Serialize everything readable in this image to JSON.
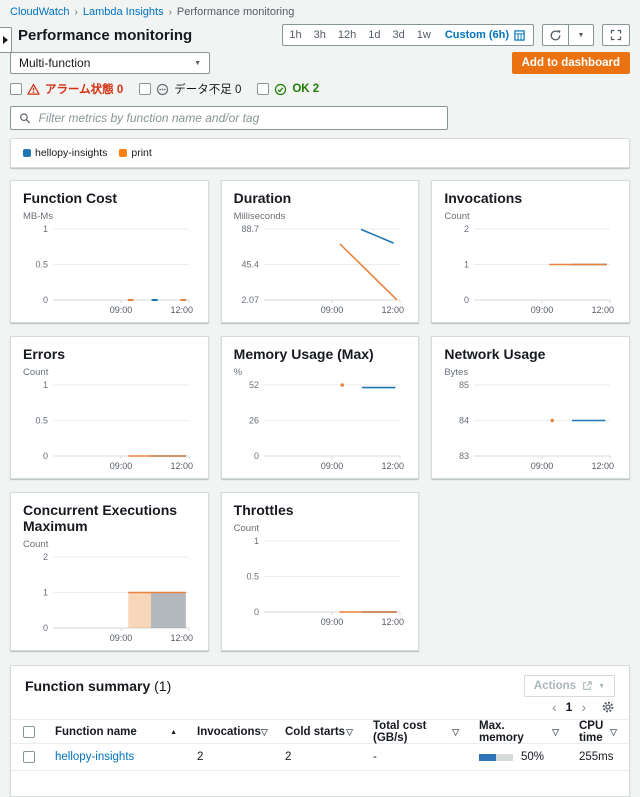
{
  "colors": {
    "accent_orange": "#ec7211",
    "link_blue": "#0073bb",
    "alarm_red": "#d13212",
    "ok_green": "#1d8102",
    "series_blue": "#1f77b4",
    "series_orange": "#e8823d"
  },
  "breadcrumb": {
    "items": [
      "CloudWatch",
      "Lambda Insights",
      "Performance monitoring"
    ]
  },
  "header": {
    "title": "Performance monitoring",
    "time_ranges": [
      "1h",
      "3h",
      "12h",
      "1d",
      "3d",
      "1w"
    ],
    "custom_range": "Custom (6h)",
    "add_to_dashboard_label": "Add to dashboard"
  },
  "toolbar": {
    "function_select_value": "Multi-function"
  },
  "alarm_filters": [
    {
      "label": "アラーム状態 0",
      "icon": "alarm-triangle"
    },
    {
      "label": "データ不足 0",
      "icon": "insufficient-data"
    },
    {
      "label": "OK 2",
      "icon": "ok-check"
    }
  ],
  "filter": {
    "placeholder": "Filter metrics by function name and/or tag"
  },
  "legend": {
    "items": [
      {
        "label": "hellopy-insights",
        "color": "#1f77b4"
      },
      {
        "label": "print",
        "color": "#ff7f0e"
      }
    ]
  },
  "chart_data": {
    "type": "line",
    "x_window": "06:00-12:00 (6h)",
    "charts": [
      {
        "title": "Function Cost",
        "unit": "MB-Ms",
        "xdomain": [
          6,
          12
        ],
        "xticks": [
          {
            "v": 9,
            "label": "09:00"
          },
          {
            "v": 12,
            "label": "12:00"
          }
        ],
        "yticks": [
          {
            "v": 1,
            "label": "1"
          },
          {
            "v": 0.5,
            "label": "0.5"
          },
          {
            "v": 0,
            "label": "0"
          }
        ],
        "series": [
          {
            "name": "print",
            "type": "line",
            "color": "#e8823d",
            "width": 2,
            "lines": [
              [
                [
                  9.3,
                  0
                ],
                [
                  9.55,
                  0
                ]
              ],
              [
                [
                  11.62,
                  0
                ],
                [
                  11.88,
                  0
                ]
              ]
            ]
          },
          {
            "name": "hellopy-insights",
            "type": "line",
            "color": "#1f77b4",
            "width": 2,
            "lines": [
              [
                [
                  10.35,
                  0
                ],
                [
                  10.62,
                  0
                ]
              ]
            ]
          }
        ]
      },
      {
        "title": "Duration",
        "unit": "Milliseconds",
        "xdomain": [
          6,
          12
        ],
        "xticks": [
          {
            "v": 9,
            "label": "09:00"
          },
          {
            "v": 12,
            "label": "12:00"
          }
        ],
        "yticks": [
          {
            "v": 88.7,
            "label": "88.7"
          },
          {
            "v": 45.4,
            "label": "45.4"
          },
          {
            "v": 2.07,
            "label": "2.07"
          }
        ],
        "series": [
          {
            "name": "hellopy-insights",
            "type": "line",
            "color": "#1f77b4",
            "lines": [
              [
                [
                  10.28,
                  88.3
                ],
                [
                  11.72,
                  71.5
                ]
              ]
            ]
          },
          {
            "name": "print",
            "type": "line",
            "color": "#e8823d",
            "lines": [
              [
                [
                  9.35,
                  70.5
                ],
                [
                  11.86,
                  2.3
                ]
              ]
            ]
          }
        ]
      },
      {
        "title": "Invocations",
        "unit": "Count",
        "xdomain": [
          6,
          12
        ],
        "xticks": [
          {
            "v": 9,
            "label": "09:00"
          },
          {
            "v": 12,
            "label": "12:00"
          }
        ],
        "yticks": [
          {
            "v": 2,
            "label": "2"
          },
          {
            "v": 1,
            "label": "1"
          },
          {
            "v": 0,
            "label": "0"
          }
        ],
        "series": [
          {
            "name": "hellopy-insights",
            "type": "line",
            "color": "#1f77b4",
            "lines": [
              [
                [
                  10.3,
                  1
                ],
                [
                  11.86,
                  1
                ]
              ]
            ]
          },
          {
            "name": "print",
            "type": "line",
            "color": "#e8823d",
            "lines": [
              [
                [
                  9.32,
                  1
                ],
                [
                  11.86,
                  1
                ]
              ]
            ]
          }
        ]
      },
      {
        "title": "Errors",
        "unit": "Count",
        "xdomain": [
          6,
          12
        ],
        "xticks": [
          {
            "v": 9,
            "label": "09:00"
          },
          {
            "v": 12,
            "label": "12:00"
          }
        ],
        "yticks": [
          {
            "v": 1,
            "label": "1"
          },
          {
            "v": 0.5,
            "label": "0.5"
          },
          {
            "v": 0,
            "label": "0"
          }
        ],
        "series": [
          {
            "name": "hellopy-insights",
            "type": "line",
            "color": "#1f77b4",
            "lines": [
              [
                [
                  10.3,
                  0
                ],
                [
                  11.86,
                  0
                ]
              ]
            ]
          },
          {
            "name": "print",
            "type": "line",
            "color": "#e8823d",
            "lines": [
              [
                [
                  9.32,
                  0
                ],
                [
                  11.86,
                  0
                ]
              ]
            ]
          }
        ]
      },
      {
        "title": "Memory Usage (Max)",
        "unit": "%",
        "xdomain": [
          6,
          12
        ],
        "xticks": [
          {
            "v": 9,
            "label": "09:00"
          },
          {
            "v": 12,
            "label": "12:00"
          }
        ],
        "yticks": [
          {
            "v": 52,
            "label": "52"
          },
          {
            "v": 26,
            "label": "26"
          },
          {
            "v": 0,
            "label": "0"
          }
        ],
        "series": [
          {
            "name": "print",
            "type": "dot",
            "color": "#e8823d",
            "points": [
              [
                9.45,
                52
              ]
            ]
          },
          {
            "name": "hellopy-insights",
            "type": "line",
            "color": "#1f77b4",
            "lines": [
              [
                [
                  10.32,
                  50.1
                ],
                [
                  11.8,
                  50.1
                ]
              ]
            ]
          }
        ]
      },
      {
        "title": "Network Usage",
        "unit": "Bytes",
        "xdomain": [
          6,
          12
        ],
        "xticks": [
          {
            "v": 9,
            "label": "09:00"
          },
          {
            "v": 12,
            "label": "12:00"
          }
        ],
        "yticks": [
          {
            "v": 85,
            "label": "85"
          },
          {
            "v": 84,
            "label": "84"
          },
          {
            "v": 83,
            "label": "83"
          }
        ],
        "series": [
          {
            "name": "print",
            "type": "dot",
            "color": "#e8823d",
            "points": [
              [
                9.45,
                84
              ]
            ]
          },
          {
            "name": "hellopy-insights",
            "type": "line",
            "color": "#1f77b4",
            "lines": [
              [
                [
                  10.32,
                  84
                ],
                [
                  11.8,
                  84
                ]
              ]
            ]
          }
        ]
      },
      {
        "title": "Concurrent Executions Maximum",
        "unit": "Count",
        "xdomain": [
          6,
          12
        ],
        "xticks": [
          {
            "v": 9,
            "label": "09:00"
          },
          {
            "v": 12,
            "label": "12:00"
          }
        ],
        "yticks": [
          {
            "v": 2,
            "label": "2"
          },
          {
            "v": 1,
            "label": "1"
          },
          {
            "v": 0,
            "label": "0"
          }
        ],
        "series": [
          {
            "name": "print",
            "type": "area",
            "fill": "rgba(236,146,70,0.38)",
            "lines": [
              [
                [
                  9.32,
                  1
                ],
                [
                  11.86,
                  1
                ]
              ]
            ]
          },
          {
            "name": "hellopy-insights",
            "type": "area",
            "fill": "rgba(98,150,200,0.45)",
            "lines": [
              [
                [
                  10.32,
                  1
                ],
                [
                  11.86,
                  1
                ]
              ]
            ]
          },
          {
            "name": "print",
            "type": "line",
            "color": "#e8823d",
            "lines": [
              [
                [
                  9.32,
                  1
                ],
                [
                  11.86,
                  1
                ]
              ]
            ]
          }
        ]
      },
      {
        "title": "Throttles",
        "unit": "Count",
        "xdomain": [
          6,
          12
        ],
        "xticks": [
          {
            "v": 9,
            "label": "09:00"
          },
          {
            "v": 12,
            "label": "12:00"
          }
        ],
        "yticks": [
          {
            "v": 1,
            "label": "1"
          },
          {
            "v": 0.5,
            "label": "0.5"
          },
          {
            "v": 0,
            "label": "0"
          }
        ],
        "series": [
          {
            "name": "hellopy-insights",
            "type": "line",
            "color": "#1f77b4",
            "lines": [
              [
                [
                  10.3,
                  0
                ],
                [
                  11.86,
                  0
                ]
              ]
            ]
          },
          {
            "name": "print",
            "type": "line",
            "color": "#e8823d",
            "lines": [
              [
                [
                  9.32,
                  0
                ],
                [
                  11.86,
                  0
                ]
              ]
            ]
          }
        ]
      }
    ]
  },
  "summary": {
    "title": "Function summary",
    "count": "(1)",
    "actions_label": "Actions",
    "pagination": {
      "page": "1"
    },
    "columns": [
      {
        "label": "Function name",
        "sort": "asc"
      },
      {
        "label": "Invocations",
        "sort": "sortable"
      },
      {
        "label": "Cold starts",
        "sort": "sortable"
      },
      {
        "label": "Total cost (GB/s)",
        "sort": "sortable"
      },
      {
        "label": "Max. memory",
        "sort": "sortable"
      },
      {
        "label": "CPU time",
        "sort": "sortable"
      }
    ],
    "rows": [
      {
        "function_name": "hellopy-insights",
        "invocations": "2",
        "cold_starts": "2",
        "total_cost": "-",
        "max_memory": "50%",
        "max_memory_fill_percent": 50,
        "cpu_time": "255ms"
      }
    ]
  }
}
